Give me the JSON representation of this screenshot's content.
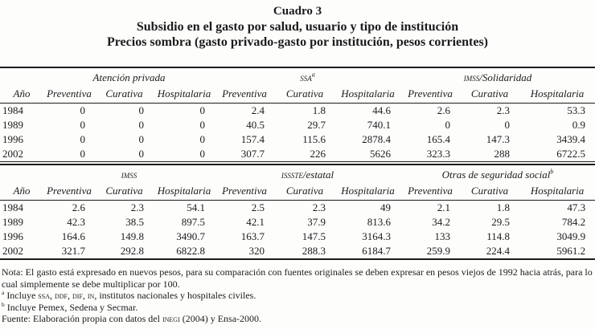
{
  "title": {
    "line1": "Cuadro 3",
    "line2": "Subsidio en el gasto por salud, usuario y tipo de institución",
    "line3": "Precios sombra (gasto privado-gasto por institución, pesos corrientes)"
  },
  "table": {
    "columns": [
      "Año",
      "Preventiva",
      "Curativa",
      "Hospitalaria",
      "Preventiva",
      "Curativa",
      "Hospitalaria",
      "Preventiva",
      "Curativa",
      "Hospitalaria"
    ],
    "blocks": [
      {
        "groups": [
          [
            {
              "t": "Atención privada"
            }
          ],
          [
            {
              "t": "ssa",
              "sc": 1
            },
            {
              "t": "a",
              "sup": 1
            }
          ],
          [
            {
              "t": "imss",
              "sc": 1
            },
            {
              "t": "/Solidaridad"
            }
          ]
        ],
        "rows": [
          [
            "1984",
            "0",
            "0",
            "0",
            "2.4",
            "1.8",
            "44.6",
            "2.6",
            "2.3",
            "53.3"
          ],
          [
            "1989",
            "0",
            "0",
            "0",
            "40.5",
            "29.7",
            "740.1",
            "0",
            "0",
            "0.9"
          ],
          [
            "1996",
            "0",
            "0",
            "0",
            "157.4",
            "115.6",
            "2878.4",
            "165.4",
            "147.3",
            "3439.4"
          ],
          [
            "2002",
            "0",
            "0",
            "0",
            "307.7",
            "226",
            "5626",
            "323.3",
            "288",
            "6722.5"
          ]
        ]
      },
      {
        "groups": [
          [
            {
              "t": "imss",
              "sc": 1
            }
          ],
          [
            {
              "t": "issste",
              "sc": 1
            },
            {
              "t": "/estatal"
            }
          ],
          [
            {
              "t": "Otras de seguridad social"
            },
            {
              "t": "b",
              "sup": 1
            }
          ]
        ],
        "rows": [
          [
            "1984",
            "2.6",
            "2.3",
            "54.1",
            "2.5",
            "2.3",
            "49",
            "2.1",
            "1.8",
            "47.3"
          ],
          [
            "1989",
            "42.3",
            "38.5",
            "897.5",
            "42.1",
            "37.9",
            "813.6",
            "34.2",
            "29.5",
            "784.2"
          ],
          [
            "1996",
            "164.6",
            "149.8",
            "3490.7",
            "163.7",
            "147.5",
            "3164.3",
            "133",
            "114.8",
            "3049.9"
          ],
          [
            "2002",
            "321.7",
            "292.8",
            "6822.8",
            "320",
            "288.3",
            "6184.7",
            "259.9",
            "224.4",
            "5961.2"
          ]
        ]
      }
    ]
  },
  "notes": {
    "note": [
      {
        "t": "Nota: El gasto está expresado en nuevos pesos, para su comparación con fuentes originales se deben expresar en pesos viejos de 1992 hacia atrás, para lo cual simplemente se debe multiplicar por 100."
      }
    ],
    "fn_a": [
      {
        "t": "a",
        "sup": 1
      },
      {
        "t": " Incluye "
      },
      {
        "t": "ssa",
        "sc": 1
      },
      {
        "t": ", "
      },
      {
        "t": "ddf",
        "sc": 1
      },
      {
        "t": ", "
      },
      {
        "t": "dif",
        "sc": 1
      },
      {
        "t": ", "
      },
      {
        "t": "in",
        "sc": 1
      },
      {
        "t": ", institutos nacionales y hospitales civiles."
      }
    ],
    "fn_b": [
      {
        "t": "b",
        "sup": 1
      },
      {
        "t": " Incluye Pemex, Sedena y Secmar."
      }
    ],
    "source": [
      {
        "t": "Fuente: Elaboración propia con datos del "
      },
      {
        "t": "inegi",
        "sc": 1
      },
      {
        "t": " (2004) y Ensa-2000."
      }
    ]
  }
}
